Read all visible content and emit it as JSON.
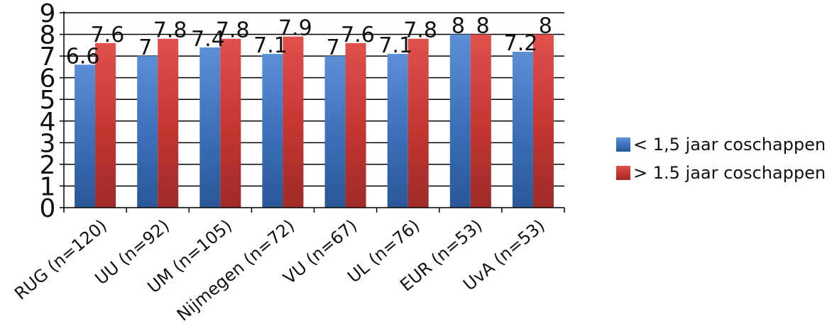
{
  "chart_data": {
    "type": "bar",
    "title": "",
    "xlabel": "",
    "ylabel": "",
    "ylim": [
      0,
      9
    ],
    "yticks": [
      "0",
      "1",
      "2",
      "3",
      "4",
      "5",
      "6",
      "7",
      "8",
      "9"
    ],
    "grid": true,
    "legend_position": "right",
    "categories": [
      "RUG (n=120)",
      "UU (n=92)",
      "UM (n=105)",
      "Nijmegen (n=72)",
      "VU (n=67)",
      "UL (n=76)",
      "EUR (n=53)",
      "UvA (n=53)"
    ],
    "series": [
      {
        "name": "< 1,5 jaar coschappen",
        "color": "#3a6fb7",
        "values": [
          6.6,
          7,
          7.4,
          7.1,
          7,
          7.1,
          8,
          7.2
        ],
        "labels": [
          "6.6",
          "7",
          "7.4",
          "7.1",
          "7",
          "7.1",
          "8",
          "7.2"
        ]
      },
      {
        "name": "> 1.5 jaar coschappen",
        "color": "#c23531",
        "values": [
          7.6,
          7.8,
          7.8,
          7.9,
          7.6,
          7.8,
          8,
          8
        ],
        "labels": [
          "7.6",
          "7.8",
          "7.8",
          "7.9",
          "7.6",
          "7.8",
          "8",
          "8"
        ]
      }
    ]
  }
}
